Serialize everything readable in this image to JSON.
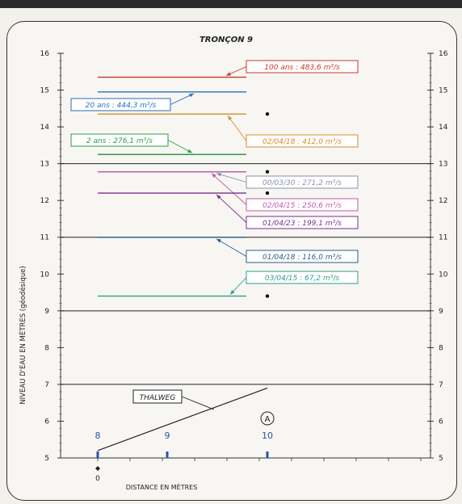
{
  "chart_data": {
    "type": "line",
    "title": "TRONÇON 9",
    "ylabel": "NIVEAU D'EAU EN MÈTRES (géodésique)",
    "xlabel": "DISTANCE EN MÈTRES",
    "ylim": [
      5,
      16
    ],
    "y_ticks": [
      "5",
      "6",
      "7",
      "8",
      "9",
      "10",
      "11",
      "12",
      "13",
      "14",
      "15",
      "16"
    ],
    "x_tick_label": "0",
    "sections": [
      "8",
      "9",
      "10"
    ],
    "point_marker": "A",
    "thalweg": {
      "label": "THALWEG",
      "x": [
        0,
        1,
        2
      ],
      "y": [
        5.2,
        5.9,
        6.9
      ]
    },
    "series": [
      {
        "name": "100 ans : 483,6 m³/s",
        "y": 15.35,
        "color": "#c8372d"
      },
      {
        "name": "20 ans : 444,3 m³/s",
        "y": 14.95,
        "color": "#2a6fb8"
      },
      {
        "name": "02/04/18 : 412,0 m³/s",
        "y": 14.35,
        "color": "#d98c2b"
      },
      {
        "name": "2 ans : 276,1 m³/s",
        "y": 13.25,
        "color": "#2e9a4a"
      },
      {
        "name": "00/03/30 : 271,2 m³/s",
        "y": 12.78,
        "color": "#8a8fb0"
      },
      {
        "name": "02/04/15 : 250,6 m³/s",
        "y": 12.78,
        "color": "#c05aa8"
      },
      {
        "name": "01/04/23 : 199,1 m³/s",
        "y": 12.2,
        "color": "#7a2f8c"
      },
      {
        "name": "01/04/18 : 116,0 m³/s",
        "y": 11.0,
        "color": "#2b5f8a"
      },
      {
        "name": "03/04/15 : 67,2 m³/s",
        "y": 9.4,
        "color": "#2f9e8c"
      }
    ]
  }
}
